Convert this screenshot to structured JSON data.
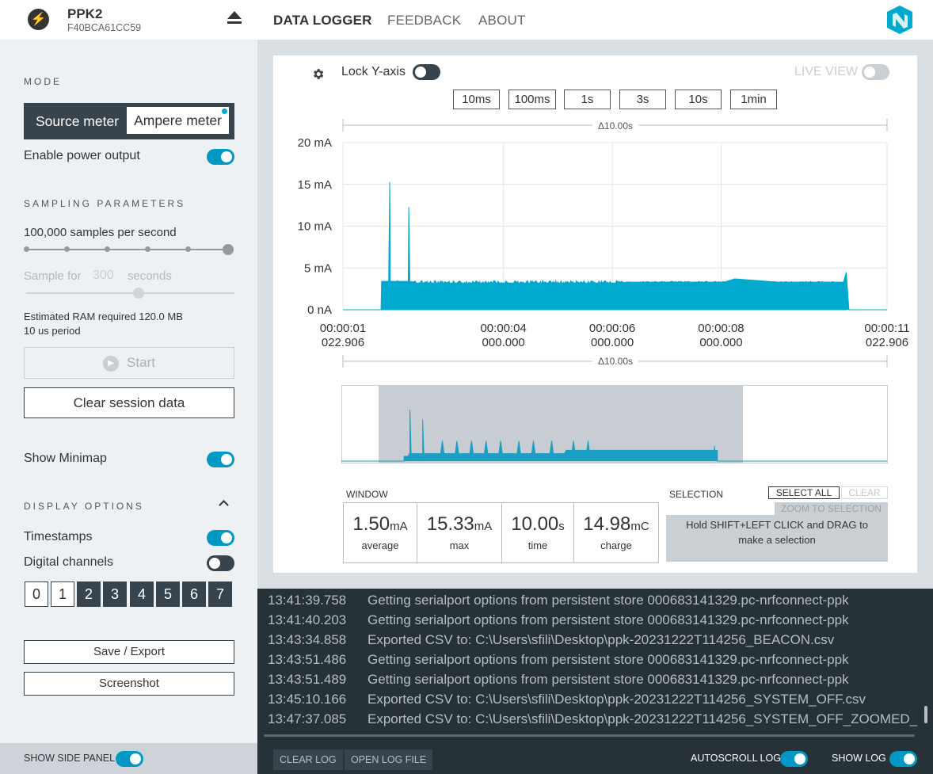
{
  "header": {
    "device_name": "PPK2",
    "device_serial": "F40BCA61CC59",
    "nav": [
      "DATA LOGGER",
      "FEEDBACK",
      "ABOUT"
    ],
    "active_nav": "DATA LOGGER"
  },
  "sidebar": {
    "mode_heading": "MODE",
    "mode_source": "Source meter",
    "mode_ampere": "Ampere meter",
    "enable_power_label": "Enable power output",
    "enable_power_on": true,
    "sampling_heading": "SAMPLING PARAMETERS",
    "sample_rate_label": "100,000 samples per second",
    "sample_rate_level": 1.0,
    "sample_for_label": "Sample for",
    "sample_for_value": "300",
    "sample_for_unit": "seconds",
    "duration_level": 0.54,
    "ram_text": "Estimated RAM required 120.0 MB",
    "period_text": "10 us period",
    "start_label": "Start",
    "clear_label": "Clear session data",
    "show_minimap_label": "Show Minimap",
    "show_minimap_on": true,
    "display_heading": "DISPLAY OPTIONS",
    "timestamps_label": "Timestamps",
    "timestamps_on": true,
    "digital_label": "Digital channels",
    "digital_on": false,
    "channels": [
      "0",
      "1",
      "2",
      "3",
      "4",
      "5",
      "6",
      "7"
    ],
    "save_label": "Save / Export",
    "screenshot_label": "Screenshot",
    "show_side_panel_label": "SHOW SIDE PANEL"
  },
  "chart_top": {
    "lock_y_label": "Lock Y-axis",
    "live_view_label": "LIVE VIEW",
    "window_buttons": [
      "10ms",
      "100ms",
      "1s",
      "3s",
      "10s",
      "1min"
    ],
    "delta_label": "Δ10.00s"
  },
  "chart_data": {
    "type": "line",
    "title": "",
    "ylabel": "",
    "y_ticks": [
      "20 mA",
      "15 mA",
      "10 mA",
      "5 mA",
      "0 nA"
    ],
    "ylim": [
      0,
      20
    ],
    "x_ticks": [
      {
        "line1": "00:00:01",
        "line2": "022.906"
      },
      {
        "line1": "00:00:04",
        "line2": "000.000"
      },
      {
        "line1": "00:00:06",
        "line2": "000.000"
      },
      {
        "line1": "00:00:08",
        "line2": "000.000"
      },
      {
        "line1": "00:00:11",
        "line2": "022.906"
      }
    ],
    "series": [
      {
        "color": "#00a9ce",
        "x": [
          0,
          0.7,
          0.71,
          0.84,
          0.86,
          0.87,
          1.2,
          1.21,
          1.23,
          1.25,
          1.3,
          2.0,
          2.2,
          2.25,
          2.3,
          3.0,
          5.0,
          5.1,
          5.2,
          5.5,
          7.0,
          7.2,
          8.0,
          9.0,
          9.2,
          9.25,
          9.3,
          10.0
        ],
        "y": [
          0,
          0,
          3.4,
          3.4,
          15.3,
          3.4,
          3.4,
          12.3,
          3.2,
          0.4,
          3.2,
          3.2,
          3.2,
          1.1,
          3.2,
          3.2,
          3.2,
          0.1,
          3.3,
          3.3,
          3.3,
          3.7,
          3.3,
          3.3,
          3.3,
          4.5,
          0,
          0
        ]
      }
    ]
  },
  "stats": {
    "window_label": "WINDOW",
    "items": [
      {
        "value": "1.50",
        "unit": "mA",
        "caption": "average"
      },
      {
        "value": "15.33",
        "unit": "mA",
        "caption": "max"
      },
      {
        "value": "10.00",
        "unit": "s",
        "caption": "time"
      },
      {
        "value": "14.98",
        "unit": "mC",
        "caption": "charge"
      }
    ],
    "selection_label": "SELECTION",
    "select_all": "SELECT ALL",
    "clear": "CLEAR",
    "zoom_to_selection": "ZOOM TO SELECTION",
    "selection_hint": "Hold SHIFT+LEFT CLICK and DRAG to make a selection"
  },
  "log": {
    "lines": [
      {
        "time": "13:41:39.758",
        "msg": "Getting serialport options from persistent store 000683141329.pc-nrfconnect-ppk"
      },
      {
        "time": "13:41:40.203",
        "msg": "Getting serialport options from persistent store 000683141329.pc-nrfconnect-ppk"
      },
      {
        "time": "13:43:34.858",
        "msg": "Exported CSV to: C:\\Users\\sfili\\Desktop\\ppk-20231222T114256_BEACON.csv"
      },
      {
        "time": "13:43:51.486",
        "msg": "Getting serialport options from persistent store 000683141329.pc-nrfconnect-ppk"
      },
      {
        "time": "13:43:51.489",
        "msg": "Getting serialport options from persistent store 000683141329.pc-nrfconnect-ppk"
      },
      {
        "time": "13:45:10.166",
        "msg": "Exported CSV to: C:\\Users\\sfili\\Desktop\\ppk-20231222T114256_SYSTEM_OFF.csv"
      },
      {
        "time": "13:47:37.085",
        "msg": "Exported CSV to: C:\\Users\\sfili\\Desktop\\ppk-20231222T114256_SYSTEM_OFF_ZOOMED_"
      }
    ],
    "clear_log": "CLEAR LOG",
    "open_log_file": "OPEN LOG FILE",
    "autoscroll_label": "AUTOSCROLL LOG",
    "autoscroll_on": true,
    "show_log_label": "SHOW LOG",
    "show_log_on": true
  },
  "colors": {
    "accent": "#0098c4",
    "trace": "#00a9ce",
    "dark": "#37434d",
    "log_bg": "#263238"
  }
}
